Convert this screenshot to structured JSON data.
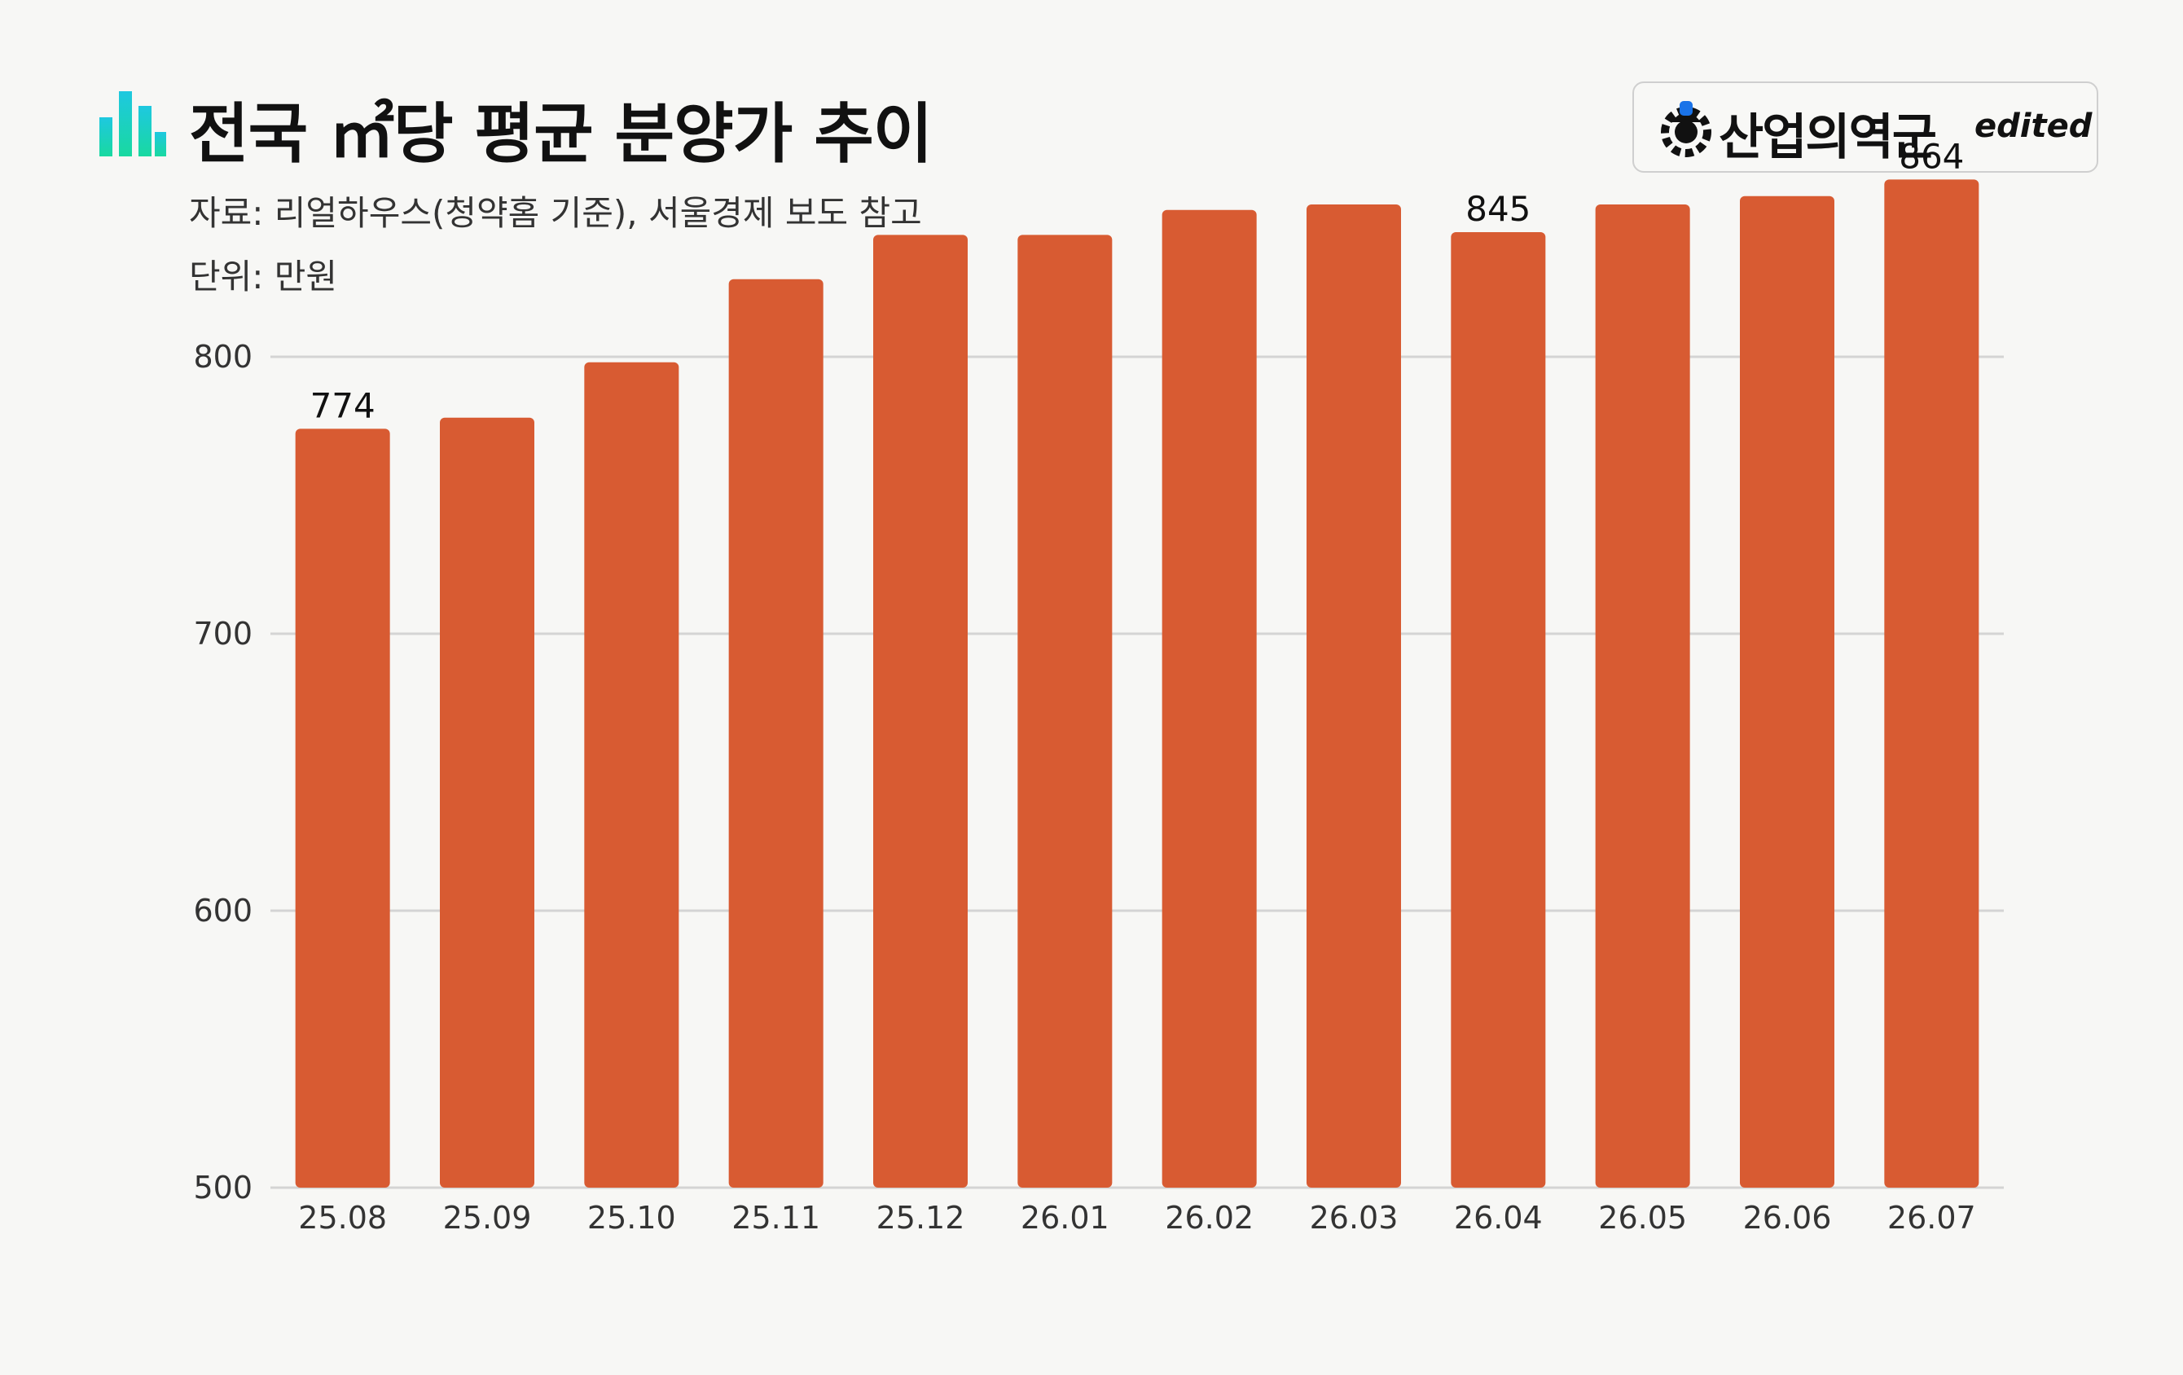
{
  "header": {
    "title": "전국 ㎡당 평균 분양가 추이",
    "source": "자료: 리얼하우스(청약홈 기준), 서울경제 보도 참고",
    "unit": "단위: 만원",
    "logo_text": "산업의역군",
    "logo_sub": "edited"
  },
  "icons": {
    "title_icon": "bar-chart-icon",
    "logo_icon": "hardhat-gear-icon"
  },
  "colors": {
    "bar": "#d85b32",
    "grid": "#d4d4d4",
    "background": "#f7f7f5",
    "icon_cyan": "#1ec8e0",
    "icon_green": "#19d9a0",
    "logo_blue": "#1a73e8"
  },
  "chart_data": {
    "type": "bar",
    "categories": [
      "25.08",
      "25.09",
      "25.10",
      "25.11",
      "25.12",
      "26.01",
      "26.02",
      "26.03",
      "26.04",
      "26.05",
      "26.06",
      "26.07"
    ],
    "values": [
      774,
      778,
      798,
      828,
      844,
      844,
      853,
      855,
      845,
      855,
      858,
      864
    ],
    "data_labels": [
      {
        "category": "25.08",
        "text": "774"
      },
      {
        "category": "26.04",
        "text": "845"
      },
      {
        "category": "26.07",
        "text": "864"
      }
    ],
    "ylim": [
      500,
      870
    ],
    "yticks": [
      500,
      600,
      700,
      800
    ],
    "ytick_labels": [
      "500",
      "600",
      "700",
      "800"
    ],
    "grid": true,
    "legend": "none",
    "xlabel": "",
    "ylabel": ""
  }
}
